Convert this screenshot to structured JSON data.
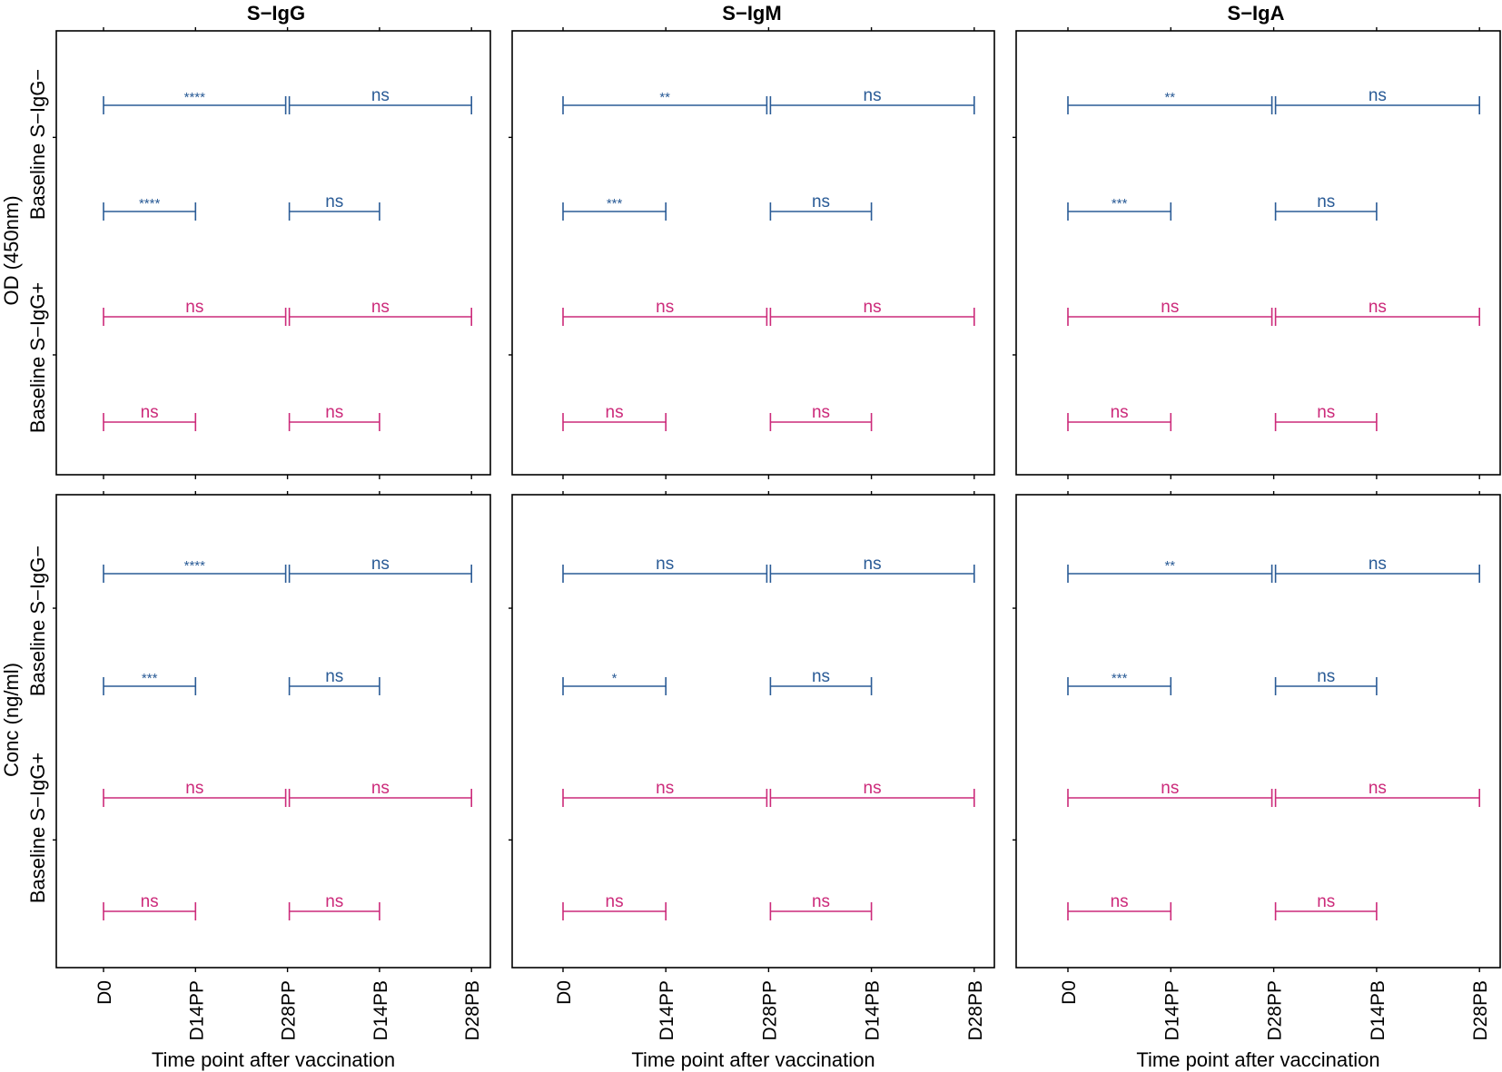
{
  "colors": {
    "seroneg": "#2a5b96",
    "seropos": "#cc2a7a"
  },
  "figure": {
    "columns": [
      "S−IgG",
      "S−IgM",
      "S−IgA"
    ],
    "rows": [
      "OD (450nm)",
      "Conc (ng/ml)"
    ],
    "group_labels": [
      "Baseline S−IgG−",
      "Baseline S−IgG+"
    ],
    "xlabel": "Time point after vaccination"
  },
  "chart_data": {
    "type": "scatter",
    "x_categories": [
      "D0",
      "D14PP",
      "D28PP",
      "D14PB",
      "D28PB"
    ],
    "xlabel": "Time point after vaccination",
    "comparison_layout": {
      "rows_per_panel": [
        {
          "group": "Baseline S−IgG−",
          "color": "seroneg",
          "brackets": [
            [
              "D0",
              "D28PP"
            ],
            [
              "D28PP",
              "D28PB"
            ]
          ]
        },
        {
          "group": "Baseline S−IgG−",
          "color": "seroneg",
          "brackets": [
            [
              "D0",
              "D14PP"
            ],
            [
              "D28PP",
              "D14PB"
            ]
          ]
        },
        {
          "group": "Baseline S−IgG+",
          "color": "seropos",
          "brackets": [
            [
              "D0",
              "D28PP"
            ],
            [
              "D28PP",
              "D28PB"
            ]
          ]
        },
        {
          "group": "Baseline S−IgG+",
          "color": "seropos",
          "brackets": [
            [
              "D0",
              "D14PP"
            ],
            [
              "D28PP",
              "D14PB"
            ]
          ]
        }
      ]
    },
    "panels": [
      {
        "row": "OD (450nm)",
        "column": "S−IgG",
        "labels": [
          [
            "****",
            "ns"
          ],
          [
            "****",
            "ns"
          ],
          [
            "ns",
            "ns"
          ],
          [
            "ns",
            "ns"
          ]
        ]
      },
      {
        "row": "OD (450nm)",
        "column": "S−IgM",
        "labels": [
          [
            "**",
            "ns"
          ],
          [
            "***",
            "ns"
          ],
          [
            "ns",
            "ns"
          ],
          [
            "ns",
            "ns"
          ]
        ]
      },
      {
        "row": "OD (450nm)",
        "column": "S−IgA",
        "labels": [
          [
            "**",
            "ns"
          ],
          [
            "***",
            "ns"
          ],
          [
            "ns",
            "ns"
          ],
          [
            "ns",
            "ns"
          ]
        ]
      },
      {
        "row": "Conc (ng/ml)",
        "column": "S−IgG",
        "labels": [
          [
            "****",
            "ns"
          ],
          [
            "***",
            "ns"
          ],
          [
            "ns",
            "ns"
          ],
          [
            "ns",
            "ns"
          ]
        ]
      },
      {
        "row": "Conc (ng/ml)",
        "column": "S−IgM",
        "labels": [
          [
            "ns",
            "ns"
          ],
          [
            "*",
            "ns"
          ],
          [
            "ns",
            "ns"
          ],
          [
            "ns",
            "ns"
          ]
        ]
      },
      {
        "row": "Conc (ng/ml)",
        "column": "S−IgA",
        "labels": [
          [
            "**",
            "ns"
          ],
          [
            "***",
            "ns"
          ],
          [
            "ns",
            "ns"
          ],
          [
            "ns",
            "ns"
          ]
        ]
      }
    ]
  }
}
